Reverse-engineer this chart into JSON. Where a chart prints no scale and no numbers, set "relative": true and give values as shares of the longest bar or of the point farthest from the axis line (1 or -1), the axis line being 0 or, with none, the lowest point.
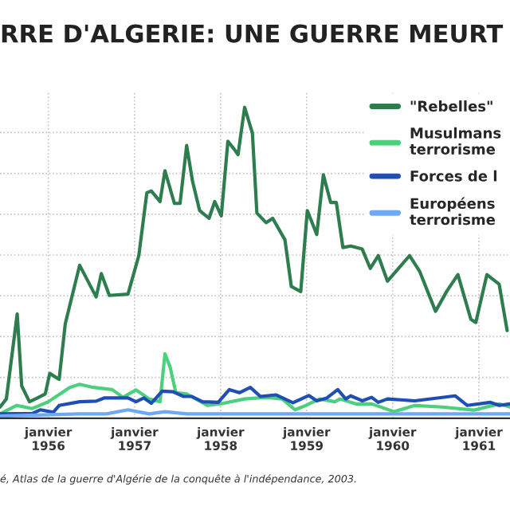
{
  "chart_data": {
    "type": "line",
    "title": "RRE D'ALGERIE: UNE GUERRE MEURT",
    "relative": true,
    "grid": true,
    "legend": "top right",
    "annotations": [
      "é, Atlas de la guerre d'Algérie de la conquête à l'indépendance, 2003."
    ],
    "xlim": [
      "1955-06-10",
      "1961-05-13"
    ],
    "xticks": [
      {
        "value": "1956-01-01",
        "label": "janvier\n1956"
      },
      {
        "value": "1957-01-01",
        "label": "janvier\n1957"
      },
      {
        "value": "1958-01-01",
        "label": "janvier\n1958"
      },
      {
        "value": "1959-01-01",
        "label": "janvier\n1959"
      },
      {
        "value": "1960-01-01",
        "label": "janvier\n1960"
      },
      {
        "value": "1961-01-01",
        "label": "janvier\n1961"
      }
    ],
    "series": [
      {
        "name": "\"Rebelles\"",
        "color": "#2e7d4f",
        "x": [
          "1955-06-10",
          "1955-07-07",
          "1955-08-22",
          "1955-09-10",
          "1955-10-13",
          "1955-11-16",
          "1955-12-19",
          "1956-01-07",
          "1956-02-16",
          "1956-03-13",
          "1956-05-13",
          "1956-07-22",
          "1956-08-13",
          "1956-09-16",
          "1956-12-04",
          "1957-01-19",
          "1957-02-22",
          "1957-03-13",
          "1957-04-19",
          "1957-05-10",
          "1957-06-19",
          "1957-07-13",
          "1957-08-10",
          "1957-09-04",
          "1957-10-04",
          "1957-11-13",
          "1957-12-07",
          "1958-01-04",
          "1958-02-01",
          "1958-02-28",
          "1958-03-16",
          "1958-04-13",
          "1958-05-16",
          "1958-06-04",
          "1958-07-13",
          "1958-08-10",
          "1958-10-01",
          "1958-10-28",
          "1958-12-07",
          "1959-01-04",
          "1959-02-13",
          "1959-03-13",
          "1959-04-13",
          "1959-05-07",
          "1959-06-04",
          "1959-07-07",
          "1959-08-25",
          "1959-09-28",
          "1959-11-01",
          "1959-12-10",
          "1960-03-13",
          "1960-04-25",
          "1960-07-01",
          "1960-08-19",
          "1960-10-04",
          "1960-11-28",
          "1960-12-19",
          "1961-02-04",
          "1961-03-28",
          "1961-05-01"
        ],
        "values": [
          0.036,
          0.062,
          0.335,
          0.104,
          0.053,
          0.065,
          0.078,
          0.144,
          0.125,
          0.304,
          0.492,
          0.39,
          0.465,
          0.395,
          0.399,
          0.523,
          0.725,
          0.731,
          0.697,
          0.796,
          0.691,
          0.691,
          0.877,
          0.762,
          0.668,
          0.643,
          0.697,
          0.651,
          0.891,
          0.865,
          0.848,
          1.0,
          0.917,
          0.66,
          0.629,
          0.643,
          0.574,
          0.424,
          0.407,
          0.668,
          0.591,
          0.783,
          0.694,
          0.694,
          0.549,
          0.554,
          0.544,
          0.482,
          0.523,
          0.441,
          0.523,
          0.472,
          0.344,
          0.41,
          0.462,
          0.318,
          0.308,
          0.462,
          0.431,
          0.282
        ]
      },
      {
        "name": "Musulmans\nterrorisme",
        "color": "#4cd07d",
        "x": [
          "1955-06-10",
          "1955-08-19",
          "1955-10-25",
          "1956-01-01",
          "1956-04-01",
          "1956-05-13",
          "1956-07-10",
          "1956-09-28",
          "1956-11-13",
          "1957-01-07",
          "1957-03-04",
          "1957-04-19",
          "1957-05-10",
          "1957-06-01",
          "1957-06-25",
          "1957-08-10",
          "1957-11-07",
          "1958-01-13",
          "1958-04-13",
          "1958-07-13",
          "1958-09-19",
          "1958-11-13",
          "1958-12-28",
          "1959-02-25",
          "1959-05-01",
          "1959-05-22",
          "1959-07-28",
          "1959-10-04",
          "1960-01-07",
          "1960-04-04",
          "1960-07-28",
          "1960-12-10",
          "1961-03-28",
          "1961-05-13"
        ],
        "values": [
          0.014,
          0.041,
          0.031,
          0.053,
          0.099,
          0.109,
          0.099,
          0.092,
          0.067,
          0.091,
          0.062,
          0.053,
          0.207,
          0.164,
          0.082,
          0.078,
          0.041,
          0.048,
          0.062,
          0.067,
          0.062,
          0.027,
          0.041,
          0.062,
          0.053,
          0.062,
          0.046,
          0.046,
          0.021,
          0.041,
          0.036,
          0.026,
          0.046,
          0.036
        ]
      },
      {
        "name": "Forces de l",
        "color": "#1f4fb5",
        "x": [
          "1955-06-10",
          "1955-10-25",
          "1955-11-28",
          "1956-01-22",
          "1956-02-16",
          "1956-05-13",
          "1956-07-22",
          "1956-08-25",
          "1956-12-04",
          "1957-01-07",
          "1957-02-10",
          "1957-03-13",
          "1957-04-28",
          "1957-06-13",
          "1957-07-28",
          "1957-09-01",
          "1957-10-16",
          "1957-12-22",
          "1958-02-07",
          "1958-03-22",
          "1958-05-07",
          "1958-06-19",
          "1958-08-25",
          "1958-11-04",
          "1959-01-10",
          "1959-02-13",
          "1959-03-28",
          "1959-05-13",
          "1959-06-16",
          "1959-07-07",
          "1959-08-25",
          "1959-10-04",
          "1959-11-01",
          "1959-12-10",
          "1960-04-04",
          "1960-09-22",
          "1960-11-13",
          "1961-02-19",
          "1961-03-28",
          "1961-05-13"
        ],
        "values": [
          0.014,
          0.015,
          0.027,
          0.019,
          0.041,
          0.053,
          0.055,
          0.065,
          0.065,
          0.053,
          0.065,
          0.048,
          0.087,
          0.085,
          0.07,
          0.07,
          0.053,
          0.051,
          0.092,
          0.082,
          0.099,
          0.07,
          0.075,
          0.05,
          0.073,
          0.056,
          0.065,
          0.092,
          0.062,
          0.072,
          0.056,
          0.067,
          0.051,
          0.062,
          0.056,
          0.072,
          0.041,
          0.051,
          0.041,
          0.046
        ]
      },
      {
        "name": "Européens\nterrorisme",
        "color": "#6fa8f5",
        "x": [
          "1955-06-10",
          "1956-05-13",
          "1956-09-04",
          "1956-12-04",
          "1957-03-04",
          "1957-05-10",
          "1957-08-10",
          "1961-05-13"
        ],
        "values": [
          0.007,
          0.014,
          0.014,
          0.027,
          0.014,
          0.021,
          0.014,
          0.014
        ]
      }
    ]
  }
}
